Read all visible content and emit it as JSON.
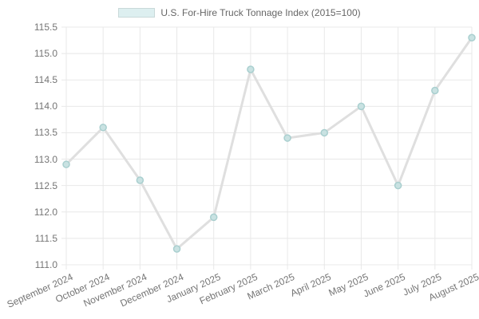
{
  "chart_data": {
    "type": "line",
    "title": "U.S. For-Hire Truck Tonnage Index (2015=100)",
    "categories": [
      "September 2024",
      "October 2024",
      "November 2024",
      "December 2024",
      "January 2025",
      "February 2025",
      "March 2025",
      "April 2025",
      "May 2025",
      "June 2025",
      "July 2025",
      "August 2025"
    ],
    "series": [
      {
        "name": "U.S. For-Hire Truck Tonnage Index (2015=100)",
        "values": [
          112.9,
          113.6,
          112.6,
          111.3,
          111.9,
          114.7,
          113.4,
          113.5,
          114.0,
          112.5,
          114.3,
          115.3
        ]
      }
    ],
    "xlabel": "",
    "ylabel": "",
    "ylim": [
      111.0,
      115.5
    ],
    "y_tick_step": 0.5,
    "grid": true,
    "legend_position": "top",
    "colors": {
      "line": "#dfdfdf",
      "point_fill": "#c9e2e2",
      "point_border": "#a9cfcf",
      "legend_swatch_fill": "#ddeff0",
      "legend_swatch_border": "#c9d9d9",
      "grid": "#e8e8e8",
      "tick_text": "#757575",
      "legend_text": "#666666"
    }
  }
}
